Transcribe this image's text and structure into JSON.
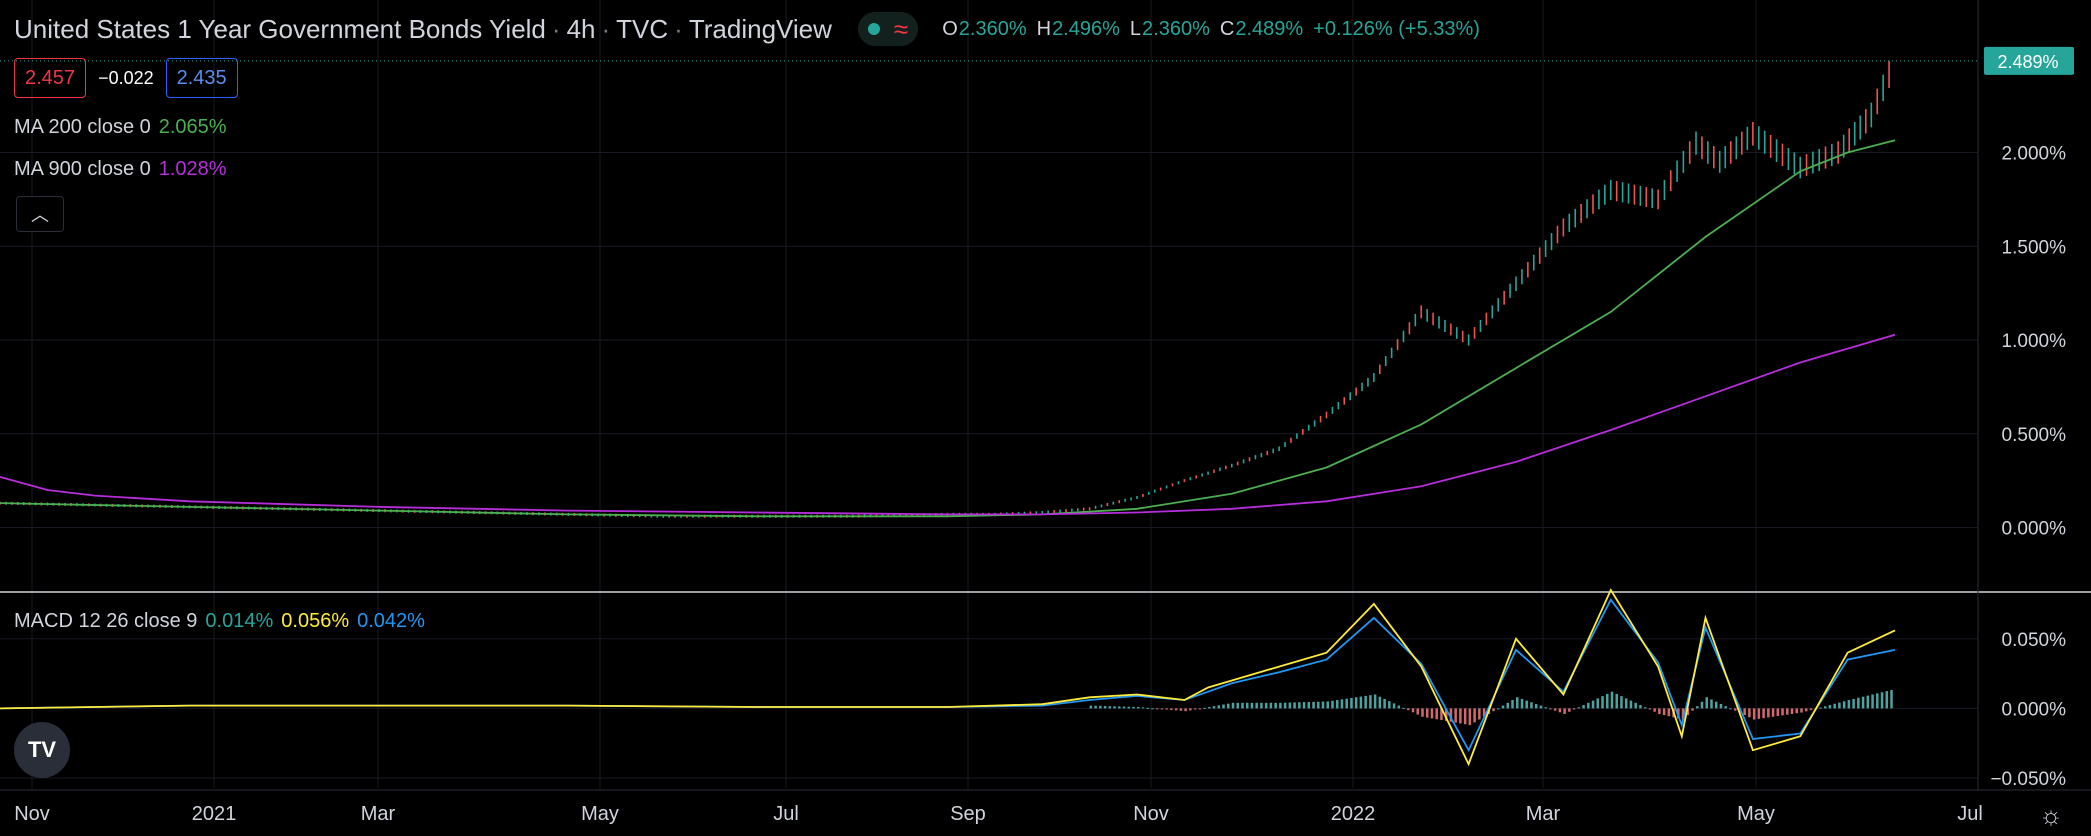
{
  "header": {
    "title": "United States 1 Year Government Bonds Yield",
    "interval": "4h",
    "source": "TVC",
    "platform": "TradingView",
    "ohlc": {
      "o_label": "O",
      "o": "2.360%",
      "h_label": "H",
      "h": "2.496%",
      "l_label": "L",
      "l": "2.360%",
      "c_label": "C",
      "c": "2.489%",
      "change": "+0.126% (+5.33%)"
    }
  },
  "price_boxes": {
    "bid": "2.457",
    "spread": "−0.022",
    "ask": "2.435"
  },
  "indicators": {
    "ma200": {
      "label": "MA 200 close 0",
      "value": "2.065%",
      "color": "#4caf50"
    },
    "ma900": {
      "label": "MA 900 close 0",
      "value": "1.028%",
      "color": "#b62edb"
    },
    "macd": {
      "label": "MACD 12 26 close 9",
      "hist": "0.014%",
      "macd": "0.056%",
      "signal": "0.042%",
      "hist_color": "#26a69a",
      "macd_color": "#ffeb3b",
      "signal_color": "#2196f3"
    }
  },
  "colors": {
    "up": "#26a69a",
    "down": "#ef5350",
    "last_price": "#26a69a",
    "background": "#000000",
    "grid": "#1e222d"
  },
  "icons": [
    "live-dot-icon",
    "wave-icon",
    "chevron-up-icon",
    "tradingview-logo-icon",
    "settings-icon"
  ],
  "chart_data": [
    {
      "type": "line",
      "title": "United States 1 Year Government Bonds Yield",
      "x_ticks": [
        "Nov",
        "2021",
        "Mar",
        "May",
        "Jul",
        "Sep",
        "Nov",
        "2022",
        "Mar",
        "May",
        "Jul"
      ],
      "y_ticks": [
        "2.000%",
        "1.500%",
        "1.000%",
        "0.500%",
        "0.000%"
      ],
      "ylim": [
        -0.12,
        2.6
      ],
      "last_price_label": "2.489%",
      "last_price": 2.489,
      "series": [
        {
          "name": "Price",
          "color": "#26a69a",
          "x": [
            0,
            2,
            4,
            6,
            8,
            10,
            12,
            14,
            16,
            18,
            20,
            21,
            22,
            23,
            24,
            25,
            26,
            27,
            28,
            29,
            30,
            31,
            32,
            33,
            34,
            35,
            35.8,
            36.3,
            37,
            38,
            38.8,
            39.5,
            40
          ],
          "y": [
            0.13,
            0.12,
            0.11,
            0.1,
            0.09,
            0.08,
            0.07,
            0.06,
            0.06,
            0.06,
            0.07,
            0.07,
            0.08,
            0.1,
            0.16,
            0.25,
            0.33,
            0.42,
            0.6,
            0.8,
            1.15,
            1.0,
            1.3,
            1.6,
            1.8,
            1.75,
            2.05,
            1.95,
            2.1,
            1.92,
            2.0,
            2.2,
            2.489
          ]
        },
        {
          "name": "MA 200 close 0",
          "color": "#4caf50",
          "x": [
            0,
            4,
            8,
            12,
            16,
            20,
            22,
            24,
            26,
            28,
            30,
            32,
            34,
            36,
            38,
            39,
            40
          ],
          "y": [
            0.13,
            0.11,
            0.09,
            0.07,
            0.06,
            0.06,
            0.07,
            0.1,
            0.18,
            0.32,
            0.55,
            0.85,
            1.15,
            1.55,
            1.9,
            2.0,
            2.065
          ]
        },
        {
          "name": "MA 900 close 0",
          "color": "#b62edb",
          "x": [
            0,
            1,
            2,
            4,
            8,
            12,
            16,
            20,
            22,
            24,
            26,
            28,
            30,
            32,
            34,
            36,
            38,
            40
          ],
          "y": [
            0.27,
            0.2,
            0.17,
            0.14,
            0.11,
            0.09,
            0.08,
            0.07,
            0.07,
            0.08,
            0.1,
            0.14,
            0.22,
            0.35,
            0.52,
            0.7,
            0.88,
            1.028
          ]
        }
      ]
    },
    {
      "type": "line",
      "title": "MACD 12 26 close 9",
      "y_ticks": [
        "0.050%",
        "0.000%",
        "−0.050%"
      ],
      "ylim": [
        -0.055,
        0.085
      ],
      "series": [
        {
          "name": "MACD",
          "color": "#ffeb3b",
          "x": [
            0,
            4,
            8,
            12,
            16,
            20,
            22,
            23,
            24,
            25,
            25.5,
            26,
            27,
            28,
            29,
            30,
            31,
            32,
            33,
            34,
            35,
            35.5,
            36,
            37,
            38,
            39,
            40
          ],
          "y": [
            0.0,
            0.002,
            0.002,
            0.002,
            0.001,
            0.001,
            0.003,
            0.008,
            0.01,
            0.006,
            0.015,
            0.02,
            0.03,
            0.04,
            0.075,
            0.03,
            -0.04,
            0.05,
            0.01,
            0.085,
            0.03,
            -0.02,
            0.065,
            -0.03,
            -0.02,
            0.04,
            0.056
          ]
        },
        {
          "name": "Signal",
          "color": "#2196f3",
          "x": [
            0,
            4,
            8,
            12,
            16,
            20,
            22,
            23,
            24,
            25,
            25.5,
            26,
            27,
            28,
            29,
            30,
            31,
            32,
            33,
            34,
            35,
            35.5,
            36,
            37,
            38,
            39,
            40
          ],
          "y": [
            0.0,
            0.002,
            0.002,
            0.002,
            0.001,
            0.001,
            0.002,
            0.006,
            0.009,
            0.006,
            0.012,
            0.018,
            0.026,
            0.035,
            0.065,
            0.032,
            -0.03,
            0.042,
            0.012,
            0.078,
            0.033,
            -0.012,
            0.058,
            -0.022,
            -0.018,
            0.035,
            0.042
          ]
        },
        {
          "name": "Histogram",
          "x": [
            23,
            24,
            25,
            26,
            27,
            28,
            29,
            30,
            31,
            32,
            33,
            34,
            35,
            35.5,
            36,
            37,
            38,
            39,
            40
          ],
          "y": [
            0.002,
            0.001,
            -0.002,
            0.004,
            0.004,
            0.005,
            0.01,
            -0.006,
            -0.012,
            0.008,
            -0.004,
            0.012,
            -0.004,
            -0.008,
            0.008,
            -0.008,
            -0.003,
            0.006,
            0.014
          ]
        }
      ]
    }
  ]
}
